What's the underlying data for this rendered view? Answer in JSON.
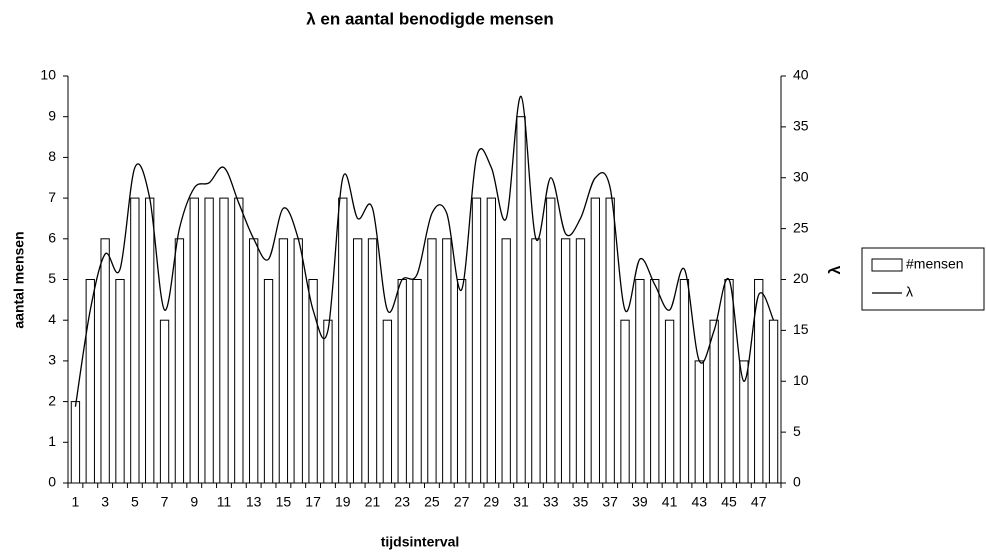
{
  "chart_data": {
    "type": "bar_line",
    "title": "λ en aantal benodigde mensen",
    "x_label": "tijdsinterval",
    "y_label": "aantal mensen",
    "y2_label": "λ",
    "categories": [
      "1",
      null,
      "3",
      null,
      "5",
      null,
      "7",
      null,
      "9",
      null,
      "11",
      null,
      "13",
      null,
      "15",
      null,
      "17",
      null,
      "19",
      null,
      "21",
      null,
      "23",
      null,
      "25",
      null,
      "27",
      null,
      "29",
      null,
      "31",
      null,
      "33",
      null,
      "35",
      null,
      "37",
      null,
      "39",
      null,
      "41",
      null,
      "43",
      null,
      "45",
      null,
      "47",
      null
    ],
    "series": [
      {
        "name": "#mensen",
        "type": "bar",
        "color": "#ffffff",
        "values": [
          2,
          5,
          6,
          5,
          7,
          7,
          4,
          6,
          7,
          7,
          7,
          7,
          6,
          5,
          6,
          6,
          5,
          4,
          7,
          6,
          6,
          4,
          5,
          5,
          6,
          6,
          5,
          7,
          7,
          6,
          9,
          6,
          7,
          6,
          6,
          7,
          7,
          4,
          5,
          5,
          4,
          5,
          3,
          4,
          5,
          3,
          5,
          4
        ]
      },
      {
        "name": "λ",
        "type": "line",
        "color": "#000000",
        "axis": "y2",
        "values": [
          7.5,
          17,
          22.5,
          21,
          31,
          28,
          17,
          25,
          29,
          29.5,
          31,
          27.5,
          24,
          22,
          27,
          24,
          17,
          15,
          30,
          26,
          27,
          17,
          20,
          20.5,
          26.5,
          26.5,
          19,
          32,
          31,
          26,
          38,
          24,
          30,
          24.5,
          26,
          30,
          29,
          17,
          22,
          19.5,
          17,
          21,
          12,
          15,
          20,
          10,
          18.5,
          16
        ]
      }
    ],
    "ylim": [
      0,
      10
    ],
    "yticks": [
      0,
      1,
      2,
      3,
      4,
      5,
      6,
      7,
      8,
      9,
      10
    ],
    "y2lim": [
      0,
      40
    ],
    "y2ticks": [
      0,
      5,
      10,
      15,
      20,
      25,
      30,
      35,
      40
    ],
    "legend": "right"
  }
}
